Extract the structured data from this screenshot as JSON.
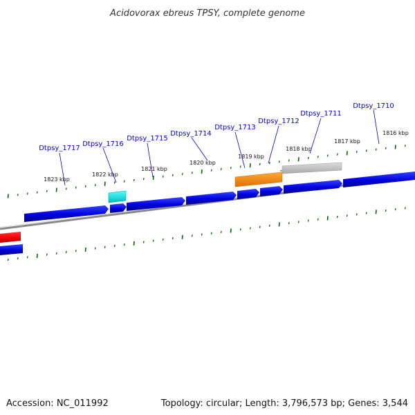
{
  "title": "Acidovorax ebreus TPSY, complete genome",
  "footer": {
    "accession": "Accession: NC_011992",
    "summary": "Topology: circular; Length: 3,796,573 bp; Genes: 3,544"
  },
  "colors": {
    "gene_forward": "#0000ee",
    "gene_reverse_red": "#ee0000",
    "gene_cyan": "#00dddd",
    "gene_orange": "#ff8800",
    "gene_gray": "#bbbbbb",
    "backbone": "#808080",
    "tick": "#006600",
    "label": "#0000cc"
  },
  "scale_labels": [
    "1823 kbp",
    "1822 kbp",
    "1821 kbp",
    "1820 kbp",
    "1819 kbp",
    "1818 kbp",
    "1817 kbp",
    "1816 kbp"
  ],
  "gene_labels": [
    "Dtpsy_1717",
    "Dtpsy_1716",
    "Dtpsy_1715",
    "Dtpsy_1714",
    "Dtpsy_1713",
    "Dtpsy_1712",
    "Dtpsy_1711",
    "Dtpsy_1710"
  ]
}
